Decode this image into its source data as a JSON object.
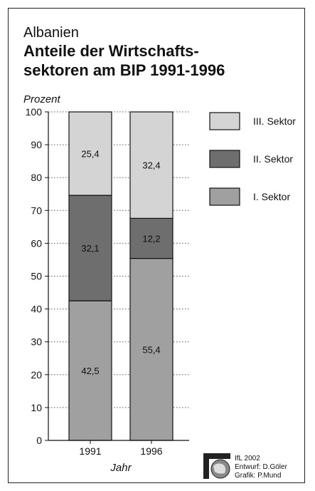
{
  "chart_data": {
    "type": "bar",
    "stacked": true,
    "subtitle": "Albanien",
    "title_lines": [
      "Anteile der Wirtschafts-",
      "sektoren am BIP 1991-1996"
    ],
    "ylabel": "Prozent",
    "xlabel": "Jahr",
    "ylim": [
      0,
      100
    ],
    "yticks": [
      "0",
      "10",
      "20",
      "30",
      "40",
      "50",
      "60",
      "70",
      "80",
      "90",
      "100"
    ],
    "categories": [
      "1991",
      "1996"
    ],
    "series": [
      {
        "name": "I.  Sektor",
        "values": [
          42.5,
          55.4
        ],
        "labels": [
          "42,5",
          "55,4"
        ],
        "color": "#a0a0a0"
      },
      {
        "name": "II.  Sektor",
        "values": [
          32.1,
          12.2
        ],
        "labels": [
          "32,1",
          "12,2"
        ],
        "color": "#6e6e6e"
      },
      {
        "name": "III. Sektor",
        "values": [
          25.4,
          32.4
        ],
        "labels": [
          "25,4",
          "32,4"
        ],
        "color": "#d4d4d4"
      }
    ],
    "legend_order": [
      2,
      1,
      0
    ],
    "legend_position": "right",
    "grid": "dotted"
  },
  "credits": {
    "line1": "IfL 2002",
    "line2": "Entwurf: D.Göler",
    "line3": "Grafik: P.Mund"
  },
  "logo": {
    "name": "ifl-logo-icon",
    "color": "#222222"
  }
}
